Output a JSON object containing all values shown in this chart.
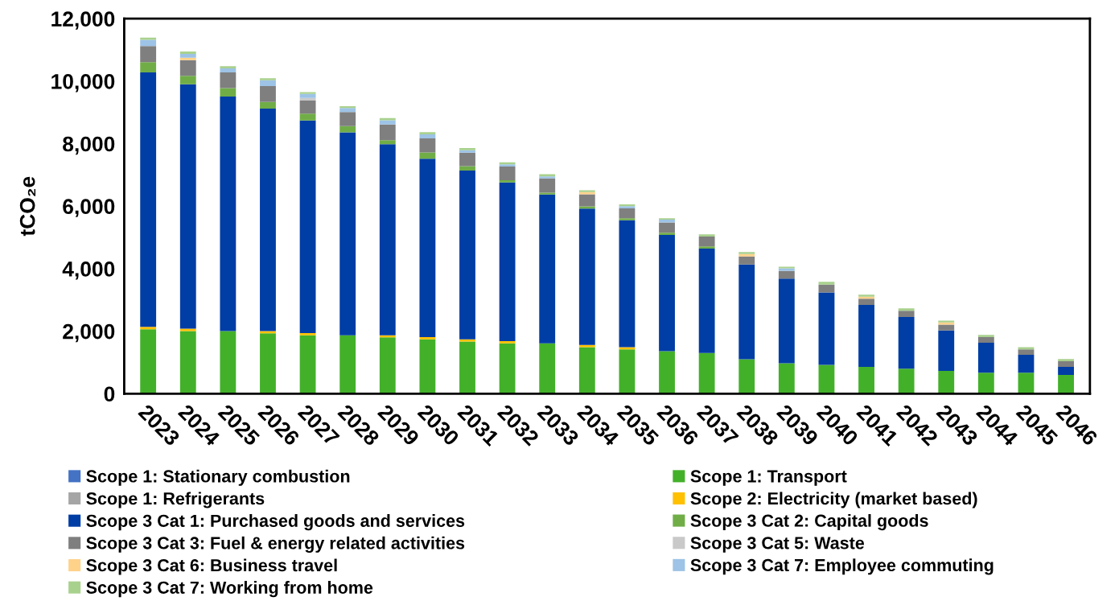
{
  "chart_data": {
    "type": "bar",
    "stacked": true,
    "ylabel": "tCO₂e",
    "categories": [
      "2023",
      "2024",
      "2025",
      "2026",
      "2027",
      "2028",
      "2029",
      "2030",
      "2031",
      "2032",
      "2033",
      "2034",
      "2035",
      "2036",
      "2037",
      "2038",
      "2039",
      "2040",
      "2041",
      "2042",
      "2043",
      "2044",
      "2045",
      "2046"
    ],
    "ylim": [
      0,
      12000
    ],
    "yticks": [
      {
        "value": 0,
        "label": "0"
      },
      {
        "value": 2000,
        "label": "2,000"
      },
      {
        "value": 4000,
        "label": "4,000"
      },
      {
        "value": 6000,
        "label": "6,000"
      },
      {
        "value": 8000,
        "label": "8,000"
      },
      {
        "value": 10000,
        "label": "10,000"
      },
      {
        "value": 12000,
        "label": "12,000"
      }
    ],
    "grid": false,
    "legend": "bottom",
    "series": [
      {
        "name": "Scope 1: Stationary combustion",
        "color": "#4472c4",
        "values": [
          0,
          0,
          0,
          0,
          0,
          0,
          0,
          0,
          0,
          0,
          0,
          0,
          0,
          0,
          0,
          0,
          0,
          0,
          0,
          0,
          0,
          0,
          0,
          0
        ]
      },
      {
        "name": "Scope 1: Transport",
        "color": "#43b02a",
        "values": [
          2060,
          2000,
          2000,
          1930,
          1870,
          1870,
          1800,
          1740,
          1670,
          1610,
          1610,
          1490,
          1420,
          1360,
          1300,
          1100,
          970,
          920,
          860,
          800,
          730,
          670,
          670,
          600
        ]
      },
      {
        "name": "Scope 1: Refrigerants",
        "color": "#a5a5a5",
        "values": [
          0,
          0,
          0,
          0,
          0,
          0,
          0,
          0,
          0,
          0,
          0,
          0,
          0,
          0,
          0,
          0,
          0,
          0,
          0,
          0,
          0,
          0,
          0,
          0
        ]
      },
      {
        "name": "Scope 2: Electricity (market based)",
        "color": "#ffc000",
        "values": [
          80,
          80,
          0,
          70,
          70,
          0,
          70,
          70,
          70,
          70,
          0,
          70,
          70,
          0,
          0,
          0,
          0,
          0,
          0,
          0,
          0,
          0,
          0,
          0
        ]
      },
      {
        "name": "Scope 3 Cat 1: Purchased goods and services",
        "color": "#003da5",
        "values": [
          8140,
          7820,
          7510,
          7120,
          6800,
          6490,
          6110,
          5710,
          5400,
          5080,
          4760,
          4360,
          4060,
          3720,
          3340,
          3030,
          2710,
          2320,
          1980,
          1650,
          1290,
          960,
          570,
          260
        ]
      },
      {
        "name": "Scope 3 Cat 2: Capital goods",
        "color": "#70ad47",
        "values": [
          330,
          270,
          270,
          210,
          220,
          200,
          130,
          200,
          140,
          70,
          60,
          70,
          60,
          70,
          70,
          0,
          0,
          0,
          0,
          0,
          0,
          0,
          0,
          0
        ]
      },
      {
        "name": "Scope 3 Cat 3: Fuel & energy related activities",
        "color": "#7f7f7f",
        "values": [
          510,
          500,
          500,
          510,
          420,
          450,
          500,
          450,
          430,
          440,
          460,
          390,
          320,
          330,
          320,
          260,
          250,
          250,
          200,
          200,
          190,
          180,
          180,
          180
        ]
      },
      {
        "name": "Scope 3 Cat 5: Waste",
        "color": "#c9c9c9",
        "values": [
          0,
          0,
          0,
          0,
          80,
          0,
          0,
          0,
          0,
          0,
          0,
          0,
          0,
          0,
          0,
          0,
          0,
          0,
          0,
          0,
          0,
          0,
          0,
          0
        ]
      },
      {
        "name": "Scope 3 Cat 6: Business travel",
        "color": "#ffd28a",
        "values": [
          0,
          80,
          0,
          0,
          0,
          0,
          0,
          0,
          0,
          0,
          0,
          70,
          0,
          0,
          0,
          80,
          0,
          0,
          60,
          0,
          70,
          0,
          0,
          0
        ]
      },
      {
        "name": "Scope 3 Cat 7: Employee commuting",
        "color": "#9dc3e6",
        "values": [
          200,
          120,
          130,
          190,
          130,
          130,
          140,
          130,
          80,
          70,
          60,
          0,
          70,
          90,
          0,
          0,
          80,
          0,
          0,
          0,
          0,
          0,
          0,
          0
        ]
      },
      {
        "name": "Scope 3 Cat 7: Working from home",
        "color": "#a9d18e",
        "values": [
          70,
          80,
          70,
          60,
          60,
          60,
          70,
          70,
          70,
          60,
          70,
          60,
          60,
          40,
          70,
          60,
          50,
          90,
          70,
          80,
          60,
          70,
          70,
          70
        ]
      }
    ]
  }
}
